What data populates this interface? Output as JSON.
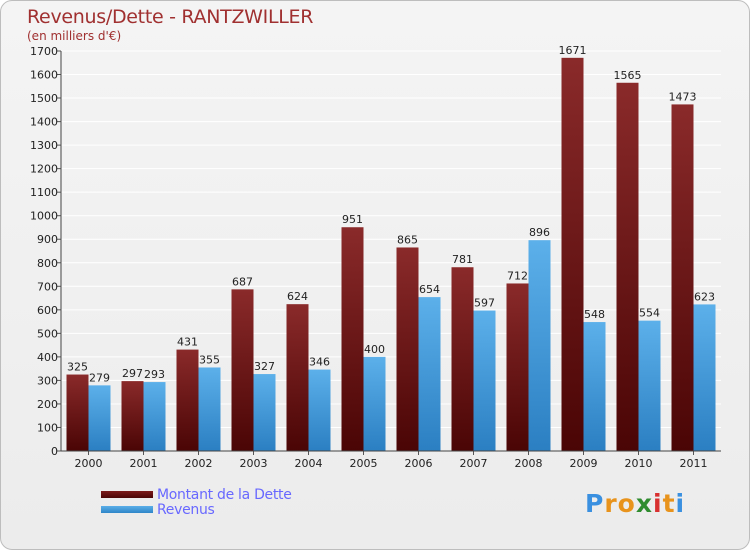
{
  "title": "Revenus/Dette - RANTZWILLER",
  "subtitle": "(en milliers d'€)",
  "logo": {
    "letters": [
      "P",
      "r",
      "o",
      "x",
      "i",
      "t",
      "i"
    ],
    "colors": [
      "#3a90e0",
      "#e8931c",
      "#e8931c",
      "#2f8c2f",
      "#d83030",
      "#e8931c",
      "#3a90e0"
    ]
  },
  "chart_data": {
    "type": "bar",
    "title": "Revenus/Dette - RANTZWILLER",
    "ylabel": "(en milliers d'€)",
    "xlabel": "",
    "ylim": [
      0,
      1700
    ],
    "ytick_step": 100,
    "grid": true,
    "categories": [
      "2000",
      "2001",
      "2002",
      "2003",
      "2004",
      "2005",
      "2006",
      "2007",
      "2008",
      "2009",
      "2010",
      "2011"
    ],
    "series": [
      {
        "name": "Montant de la Dette",
        "color": "#6b1414",
        "values": [
          325,
          297,
          431,
          687,
          624,
          951,
          865,
          781,
          712,
          1671,
          1565,
          1473
        ]
      },
      {
        "name": "Revenus",
        "color": "#4aa3e3",
        "values": [
          279,
          293,
          355,
          327,
          346,
          400,
          654,
          597,
          896,
          548,
          554,
          623
        ]
      }
    ],
    "legend_position": "bottom-left"
  }
}
